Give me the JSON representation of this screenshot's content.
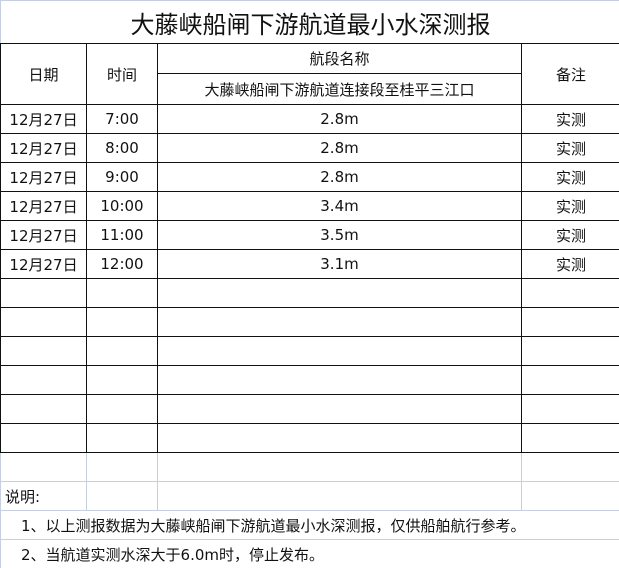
{
  "title": "大藤峡船闸下游航道最小水深测报",
  "header": {
    "date": "日期",
    "time": "时间",
    "section_name": "航段名称",
    "section_value": "大藤峡船闸下游航道连接段至桂平三江口",
    "remark": "备注"
  },
  "rows": [
    {
      "date": "12月27日",
      "time": "7:00",
      "depth": "2.8m",
      "remark": "实测"
    },
    {
      "date": "12月27日",
      "time": "8:00",
      "depth": "2.8m",
      "remark": "实测"
    },
    {
      "date": "12月27日",
      "time": "9:00",
      "depth": "2.8m",
      "remark": "实测"
    },
    {
      "date": "12月27日",
      "time": "10:00",
      "depth": "3.4m",
      "remark": "实测"
    },
    {
      "date": "12月27日",
      "time": "11:00",
      "depth": "3.5m",
      "remark": "实测"
    },
    {
      "date": "12月27日",
      "time": "12:00",
      "depth": "3.1m",
      "remark": "实测"
    }
  ],
  "notes": {
    "label": "说明:",
    "items": [
      "1、以上测报数据为大藤峡船闸下游航道最小水深测报，仅供船舶航行参考。",
      "2、当航道实测水深大于6.0m时，停止发布。"
    ]
  }
}
